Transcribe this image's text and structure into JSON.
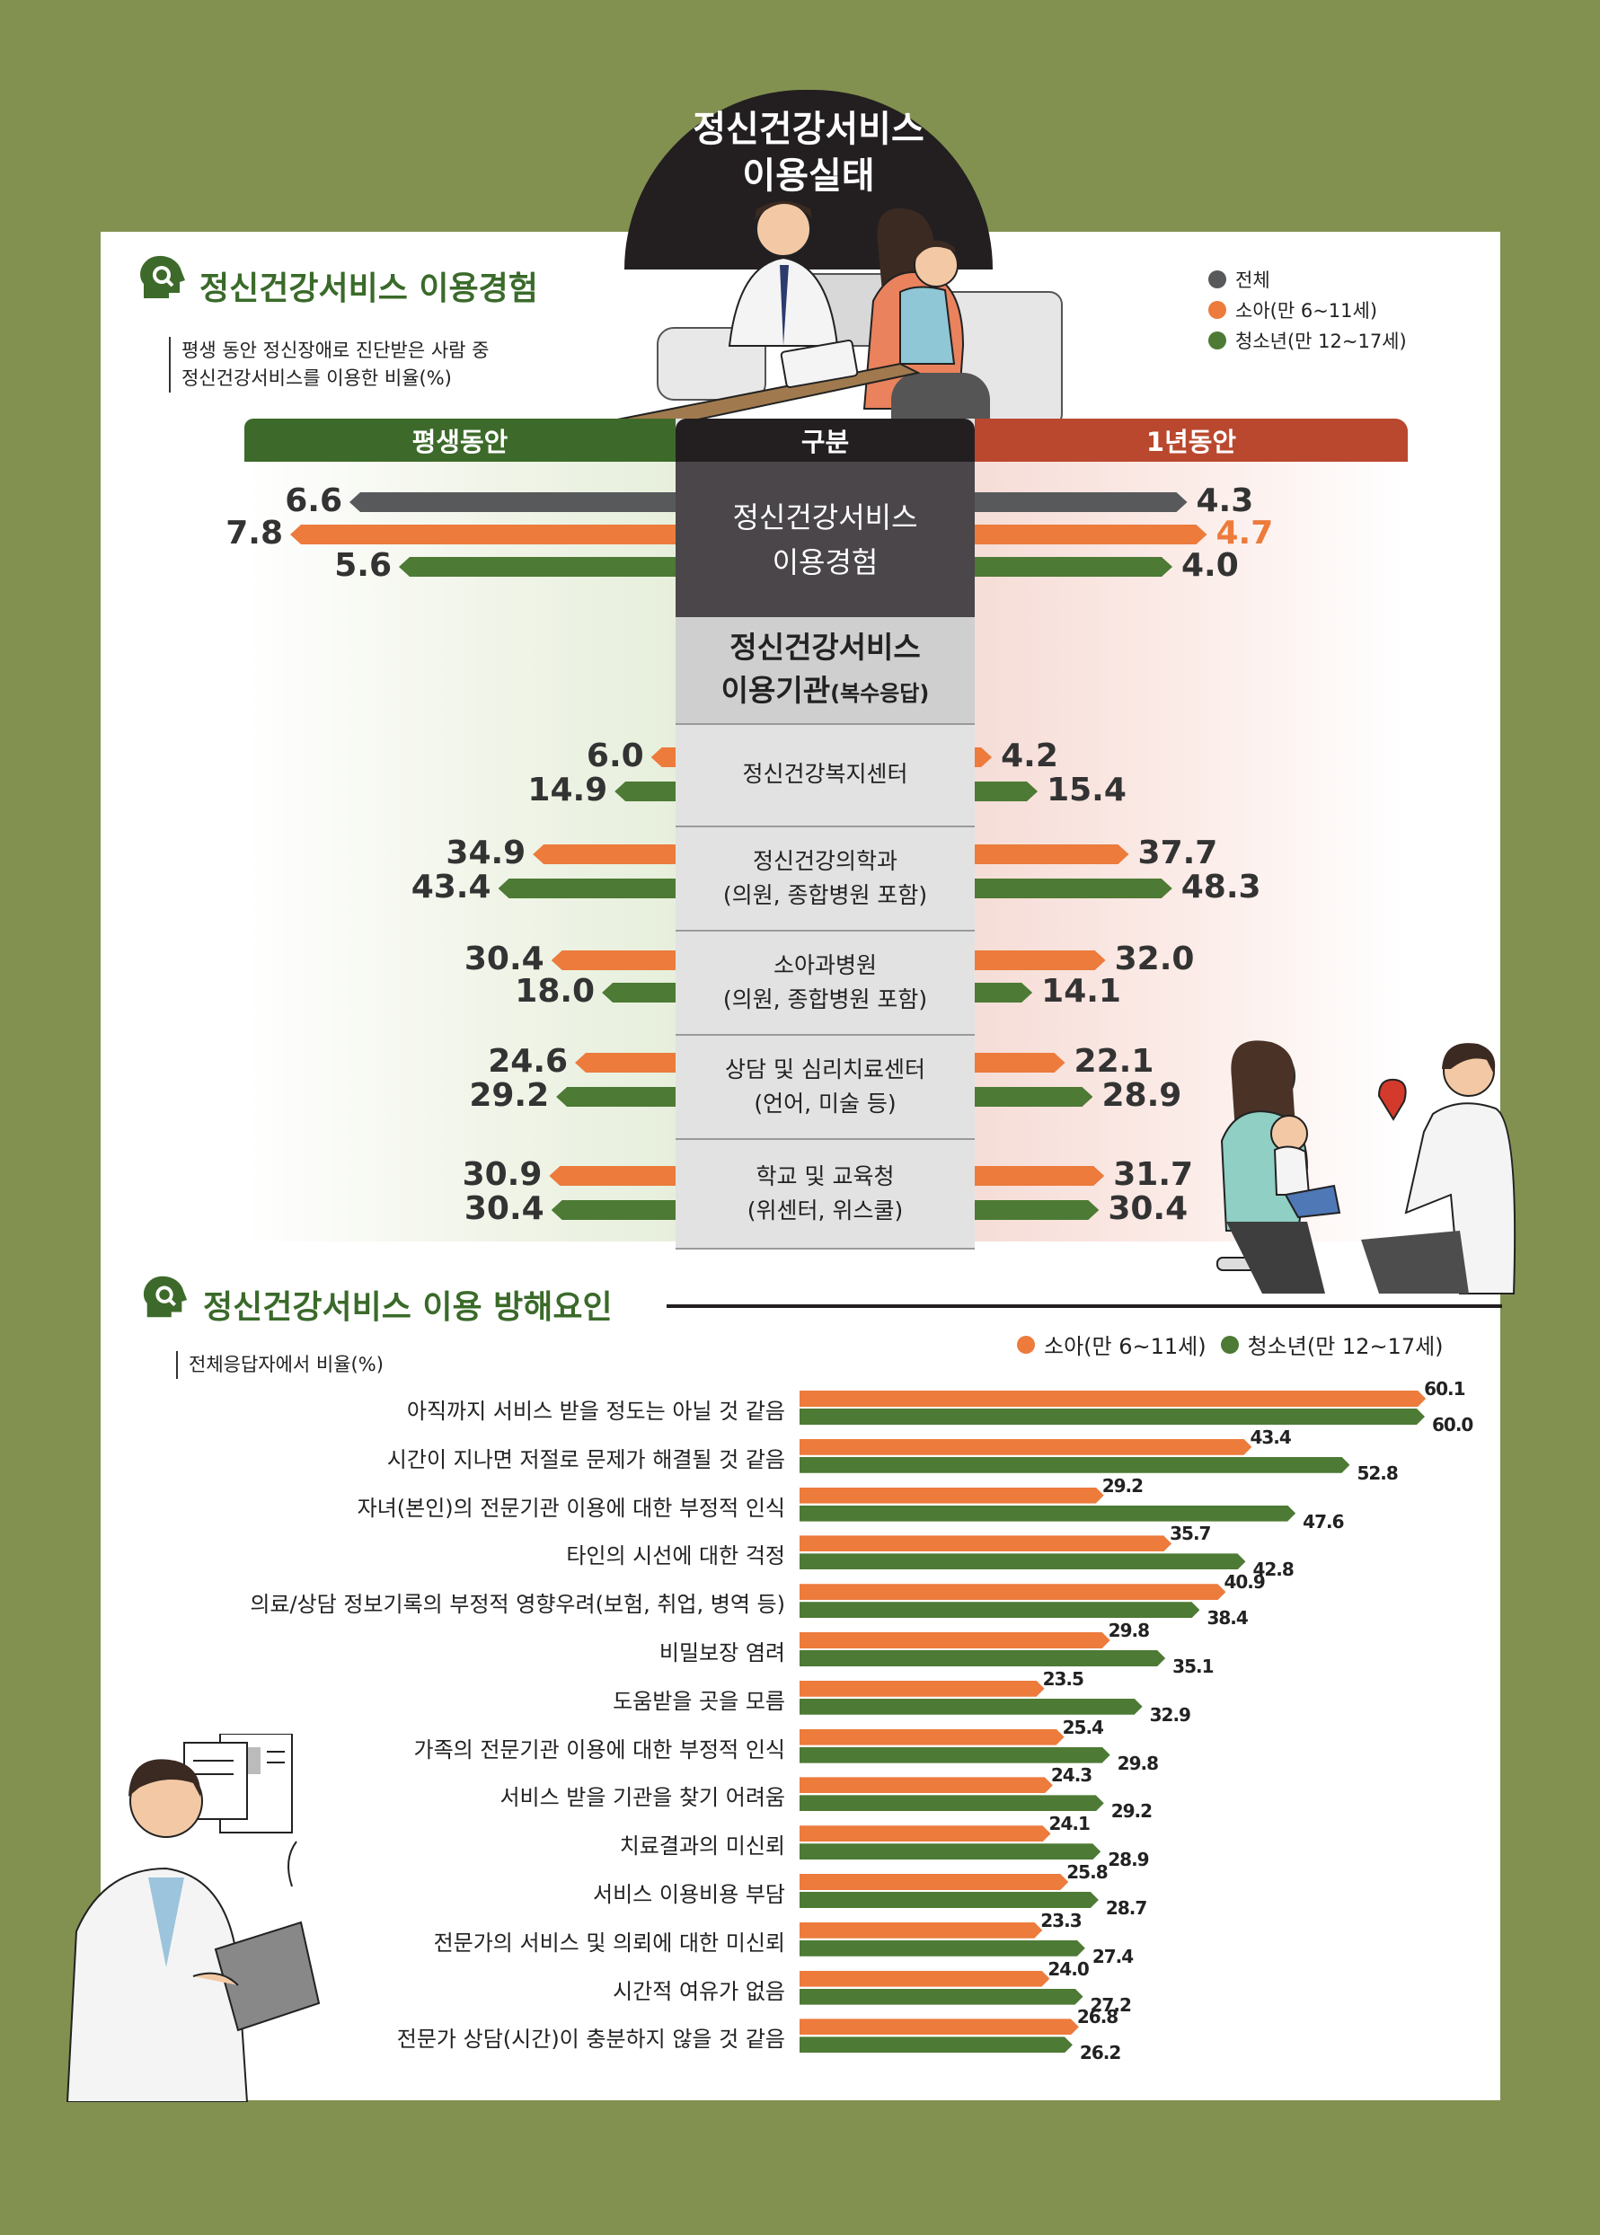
{
  "main_title": [
    "정신건강서비스",
    "이용실태"
  ],
  "section1": {
    "title": "정신건강서비스 이용경험",
    "note": [
      "평생 동안 정신장애로 진단받은 사람 중",
      "정신건강서비스를 이용한 비율(%)"
    ],
    "legend": [
      "전체",
      "소아(만 6~11세)",
      "청소년(만 12~17세)"
    ],
    "headers": {
      "left": "평생동안",
      "center": "구분",
      "right": "1년동안"
    },
    "rows": [
      {
        "label": "정신건강서비스\n이용경험"
      },
      {
        "label": "정신건강서비스\n이용기관",
        "suffix": "(복수응답)"
      },
      {
        "label": "정신건강복지센터"
      },
      {
        "label": "정신건강의학과\n(의원, 종합병원 포함)"
      },
      {
        "label": "소아과병원\n(의원, 종합병원 포함)"
      },
      {
        "label": "상담 및 심리치료센터\n(언어, 미술 등)"
      },
      {
        "label": "학교 및 교육청\n(위센터, 위스쿨)"
      }
    ]
  },
  "section2": {
    "title": "정신건강서비스 이용 방해요인",
    "note": "전체응답자에서 비율(%)",
    "legend": [
      "소아(만 6~11세)",
      "청소년(만 12~17세)"
    ]
  },
  "colors": {
    "total": "#58595b",
    "child": "#ec7b3c",
    "teen": "#4d7a34",
    "green_header": "#3d6a2a",
    "red_header": "#b9482f"
  },
  "chart_data": [
    {
      "type": "bar",
      "title": "정신건강서비스 이용경험",
      "categories": [
        "정신건강서비스 이용경험"
      ],
      "series": [
        {
          "name": "전체",
          "lifetime": [
            6.6
          ],
          "year": [
            4.3
          ]
        },
        {
          "name": "소아(만 6~11세)",
          "lifetime": [
            7.8
          ],
          "year": [
            4.7
          ]
        },
        {
          "name": "청소년(만 12~17세)",
          "lifetime": [
            5.6
          ],
          "year": [
            4.0
          ]
        }
      ]
    },
    {
      "type": "bar",
      "title": "정신건강서비스 이용기관(복수응답)",
      "categories": [
        "정신건강복지센터",
        "정신건강의학과(의원, 종합병원 포함)",
        "소아과병원(의원, 종합병원 포함)",
        "상담 및 심리치료센터(언어, 미술 등)",
        "학교 및 교육청(위센터, 위스쿨)"
      ],
      "series": [
        {
          "name": "소아(만 6~11세)",
          "lifetime": [
            6.0,
            34.9,
            30.4,
            24.6,
            30.9
          ],
          "year": [
            4.2,
            37.7,
            32.0,
            22.1,
            31.7
          ]
        },
        {
          "name": "청소년(만 12~17세)",
          "lifetime": [
            14.9,
            43.4,
            18.0,
            29.2,
            30.4
          ],
          "year": [
            15.4,
            48.3,
            14.1,
            28.9,
            30.4
          ]
        }
      ]
    },
    {
      "type": "bar",
      "title": "정신건강서비스 이용 방해요인",
      "categories": [
        "아직까지 서비스 받을 정도는 아닐 것 같음",
        "시간이 지나면 저절로 문제가 해결될 것 같음",
        "자녀(본인)의 전문기관 이용에 대한 부정적 인식",
        "타인의 시선에 대한 걱정",
        "의료/상담 정보기록의 부정적 영향우려(보험, 취업, 병역 등)",
        "비밀보장 염려",
        "도움받을 곳을 모름",
        "가족의 전문기관 이용에 대한 부정적 인식",
        "서비스 받을 기관을 찾기 어려움",
        "치료결과의 미신뢰",
        "서비스 이용비용 부담",
        "전문가의 서비스 및 의뢰에 대한 미신뢰",
        "시간적 여유가 없음",
        "전문가 상담(시간)이 충분하지 않을 것 같음"
      ],
      "series": [
        {
          "name": "소아(만 6~11세)",
          "values": [
            60.1,
            43.4,
            29.2,
            35.7,
            40.9,
            29.8,
            23.5,
            25.4,
            24.3,
            24.1,
            25.8,
            23.3,
            24.0,
            26.8
          ]
        },
        {
          "name": "청소년(만 12~17세)",
          "values": [
            60.0,
            52.8,
            47.6,
            42.8,
            38.4,
            35.1,
            32.9,
            29.8,
            29.2,
            28.9,
            28.7,
            27.4,
            27.2,
            26.2
          ]
        }
      ]
    }
  ]
}
